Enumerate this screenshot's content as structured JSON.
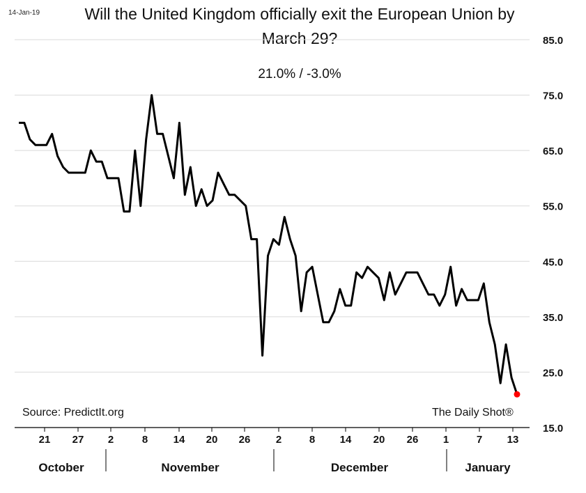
{
  "date_stamp": "14-Jan-19",
  "source": "Source:  PredictIt.org",
  "brand": "The Daily Shot®",
  "line_color": "#000000",
  "marker_color": "#ff0000",
  "chart_data": {
    "type": "line",
    "title": "Will the United Kingdom officially exit the European Union by March 29?",
    "title_lines": [
      "Will the United Kingdom officially exit the European Union by",
      "March 29?"
    ],
    "subtitle": "21.0%  /  -3.0%",
    "ylim": [
      15,
      85
    ],
    "y_ticks": [
      "85.0",
      "75.0",
      "65.0",
      "55.0",
      "45.0",
      "35.0",
      "25.0",
      "15.0"
    ],
    "y_axis_side": "right",
    "grid": true,
    "x_tick_labels": [
      "21",
      "27",
      "2",
      "8",
      "14",
      "20",
      "26",
      "2",
      "8",
      "14",
      "20",
      "26",
      "1",
      "7",
      "13"
    ],
    "months": [
      "October",
      "November",
      "December",
      "January"
    ],
    "series": [
      {
        "values": [
          70,
          70,
          67,
          66,
          66,
          66,
          68,
          64,
          62,
          61,
          61,
          61,
          61,
          65,
          63,
          63,
          60,
          60,
          60,
          54,
          54,
          65,
          55,
          67,
          75,
          68,
          68,
          64,
          60,
          70,
          57,
          62,
          55,
          58,
          55,
          56,
          61,
          59,
          57,
          57,
          56,
          55,
          49,
          49,
          28,
          46,
          49,
          48,
          53,
          49,
          46,
          36,
          43,
          44,
          39,
          34,
          34,
          36,
          40,
          37,
          37,
          43,
          42,
          44,
          43,
          42,
          38,
          43,
          39,
          41,
          43,
          43,
          43,
          41,
          39,
          39,
          37,
          39,
          44,
          37,
          40,
          38,
          38,
          38,
          41,
          34,
          30,
          23,
          30,
          24,
          21
        ]
      }
    ],
    "last_value": 21
  }
}
